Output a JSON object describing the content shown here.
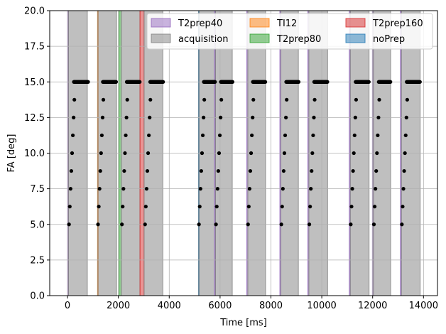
{
  "chart_data": {
    "type": "scatter",
    "title": "",
    "xlabel": "Time [ms]",
    "ylabel": "FA [deg]",
    "xlim": [
      -700,
      14550
    ],
    "ylim": [
      0,
      20
    ],
    "xticks": [
      0,
      2000,
      4000,
      6000,
      8000,
      10000,
      12000,
      14000
    ],
    "xtick_labels": [
      "0",
      "2000",
      "4000",
      "6000",
      "8000",
      "10000",
      "12000",
      "14000"
    ],
    "yticks": [
      0,
      2.5,
      5,
      7.5,
      10,
      12.5,
      15,
      17.5,
      20
    ],
    "ytick_labels": [
      "0.0",
      "2.5",
      "5.0",
      "7.5",
      "10.0",
      "12.5",
      "15.0",
      "17.5",
      "20.0"
    ],
    "grid": true,
    "legend": {
      "placement": "top-right",
      "columns": 3,
      "items": [
        {
          "label": "T2prep40",
          "color": "#9467bd"
        },
        {
          "label": "acquisition",
          "color": "#7f7f7f"
        },
        {
          "label": "TI12",
          "color": "#ff7f0e"
        },
        {
          "label": "T2prep80",
          "color": "#2ca02c"
        },
        {
          "label": "T2prep160",
          "color": "#d62728"
        },
        {
          "label": "noPrep",
          "color": "#1f77b4"
        }
      ]
    },
    "colors": {
      "T2prep40": "#9467bd",
      "acquisition": "#7f7f7f",
      "TI12": "#ff7f0e",
      "T2prep80": "#2ca02c",
      "T2prep160": "#d62728",
      "noPrep": "#1f77b4",
      "points": "#000000",
      "grid": "#b0b0b0"
    },
    "spans": [
      {
        "series": "T2prep40",
        "x": [
          0,
          40
        ]
      },
      {
        "series": "acquisition",
        "x": [
          40,
          780
        ]
      },
      {
        "series": "TI12",
        "x": [
          1180,
          1192
        ]
      },
      {
        "series": "acquisition",
        "x": [
          1192,
          1930
        ]
      },
      {
        "series": "T2prep80",
        "x": [
          2030,
          2110
        ]
      },
      {
        "series": "acquisition",
        "x": [
          2110,
          2850
        ]
      },
      {
        "series": "T2prep160",
        "x": [
          2850,
          3010
        ]
      },
      {
        "series": "acquisition",
        "x": [
          3010,
          3750
        ]
      },
      {
        "series": "noPrep",
        "x": [
          5150,
          5160
        ]
      },
      {
        "series": "acquisition",
        "x": [
          5160,
          5780
        ]
      },
      {
        "series": "T2prep40",
        "x": [
          5780,
          5820
        ]
      },
      {
        "series": "acquisition",
        "x": [
          5820,
          6480
        ]
      },
      {
        "series": "T2prep40",
        "x": [
          7050,
          7090
        ]
      },
      {
        "series": "acquisition",
        "x": [
          7090,
          7790
        ]
      },
      {
        "series": "T2prep40",
        "x": [
          8350,
          8390
        ]
      },
      {
        "series": "acquisition",
        "x": [
          8390,
          9080
        ]
      },
      {
        "series": "T2prep40",
        "x": [
          9450,
          9490
        ]
      },
      {
        "series": "acquisition",
        "x": [
          9490,
          10230
        ]
      },
      {
        "series": "T2prep40",
        "x": [
          11080,
          11120
        ]
      },
      {
        "series": "acquisition",
        "x": [
          11120,
          11860
        ]
      },
      {
        "series": "T2prep40",
        "x": [
          11990,
          12030
        ]
      },
      {
        "series": "acquisition",
        "x": [
          12030,
          12710
        ]
      },
      {
        "series": "T2prep40",
        "x": [
          13090,
          13130
        ]
      },
      {
        "series": "acquisition",
        "x": [
          13130,
          13870
        ]
      }
    ],
    "point_groups": [
      {
        "start": 60,
        "ramp": [
          5.0,
          6.25,
          7.5,
          8.75,
          10.0,
          11.25,
          12.5,
          13.75
        ],
        "ramp_step": 30,
        "plateau_start": 250,
        "plateau_end": 810,
        "plateau_value": 15
      },
      {
        "start": 1200,
        "ramp": [
          5.0,
          6.25,
          7.5,
          8.75,
          10.0,
          11.25,
          12.5,
          13.75
        ],
        "ramp_step": 30,
        "plateau_start": 1390,
        "plateau_end": 1910,
        "plateau_value": 15
      },
      {
        "start": 2140,
        "ramp": [
          5.0,
          6.25,
          7.5,
          8.75,
          10.0,
          11.25,
          12.5,
          13.75
        ],
        "ramp_step": 30,
        "plateau_start": 2330,
        "plateau_end": 2840,
        "plateau_value": 15
      },
      {
        "start": 3050,
        "ramp": [
          5.0,
          6.25,
          7.5,
          8.75,
          10.0,
          11.25,
          12.5,
          13.75
        ],
        "ramp_step": 30,
        "plateau_start": 3250,
        "plateau_end": 3760,
        "plateau_value": 15
      },
      {
        "start": 5170,
        "ramp": [
          5.0,
          6.25,
          7.5,
          8.75,
          10.0,
          11.25,
          12.5,
          13.75
        ],
        "ramp_step": 30,
        "plateau_start": 5360,
        "plateau_end": 5800,
        "plateau_value": 15
      },
      {
        "start": 5840,
        "ramp": [
          5.0,
          6.25,
          7.5,
          8.75,
          10.0,
          11.25,
          12.5,
          13.75
        ],
        "ramp_step": 30,
        "plateau_start": 6030,
        "plateau_end": 6490,
        "plateau_value": 15
      },
      {
        "start": 7100,
        "ramp": [
          5.0,
          6.25,
          7.5,
          8.75,
          10.0,
          11.25,
          12.5,
          13.75
        ],
        "ramp_step": 30,
        "plateau_start": 7290,
        "plateau_end": 7780,
        "plateau_value": 15
      },
      {
        "start": 8410,
        "ramp": [
          5.0,
          6.25,
          7.5,
          8.75,
          10.0,
          11.25,
          12.5,
          13.75
        ],
        "ramp_step": 30,
        "plateau_start": 8600,
        "plateau_end": 9090,
        "plateau_value": 15
      },
      {
        "start": 9510,
        "ramp": [
          5.0,
          6.25,
          7.5,
          8.75,
          10.0,
          11.25,
          12.5,
          13.75
        ],
        "ramp_step": 30,
        "plateau_start": 9700,
        "plateau_end": 10220,
        "plateau_value": 15
      },
      {
        "start": 11140,
        "ramp": [
          5.0,
          6.25,
          7.5,
          8.75,
          10.0,
          11.25,
          12.5,
          13.75
        ],
        "ramp_step": 30,
        "plateau_start": 11330,
        "plateau_end": 11850,
        "plateau_value": 15
      },
      {
        "start": 12050,
        "ramp": [
          5.0,
          6.25,
          7.5,
          8.75,
          10.0,
          11.25,
          12.5,
          13.75
        ],
        "ramp_step": 30,
        "plateau_start": 12240,
        "plateau_end": 12700,
        "plateau_value": 15
      },
      {
        "start": 13150,
        "ramp": [
          5.0,
          6.25,
          7.5,
          8.75,
          10.0,
          11.25,
          12.5,
          13.75
        ],
        "ramp_step": 30,
        "plateau_start": 13340,
        "plateau_end": 13860,
        "plateau_value": 15
      }
    ]
  }
}
